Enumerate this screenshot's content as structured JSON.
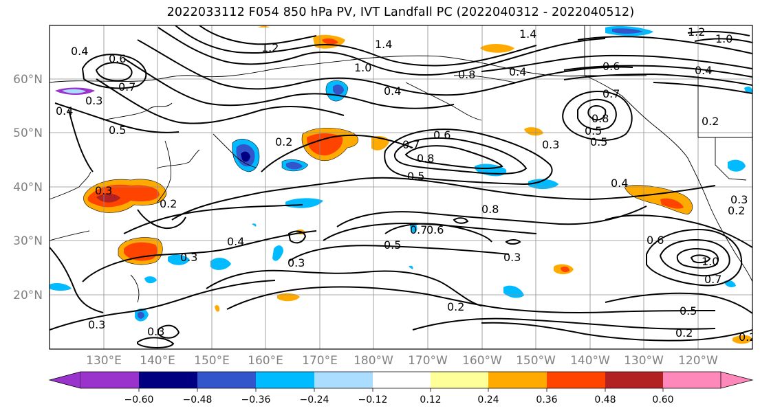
{
  "title": "2022033112 F054 850 hPa PV, IVT Landfall PC (2022040312 - 2022040512)",
  "lat_labels": [
    "60°N",
    "50°N",
    "40°N",
    "30°N",
    "20°N"
  ],
  "lon_labels": [
    "130°E",
    "140°E",
    "150°E",
    "160°E",
    "170°E",
    "180°W",
    "170°W",
    "160°W",
    "150°W",
    "140°W",
    "130°W",
    "120°W"
  ],
  "colorbar": {
    "colors": [
      "#9933cc",
      "#000080",
      "#3355cc",
      "#00bbff",
      "#aaddff",
      "#ffffff",
      "#ffff99",
      "#ffaa00",
      "#ff4400",
      "#b22222",
      "#ff88bb"
    ],
    "tick_labels": [
      "−0.60",
      "−0.48",
      "−0.36",
      "−0.24",
      "−0.12",
      "0.12",
      "0.24",
      "0.36",
      "0.48",
      "0.60"
    ]
  },
  "contour_labels": [
    "0.4",
    "0.6",
    "0.7",
    "0.4",
    "0.3",
    "0.5",
    "1.2",
    "1.4",
    "1.0",
    "1.4",
    "1.2",
    "1.0",
    "0.4",
    "0.8",
    "0.4",
    "0.6",
    "0.5",
    "0.8",
    "0.7",
    "0.4",
    "0.2",
    "0.2",
    "0.6",
    "0.8",
    "0.7",
    "0.5",
    "0.3",
    "0.5",
    "0.8",
    "0.3",
    "0.4",
    "0.2",
    "0.4",
    "0.2",
    "0.3",
    "0.3",
    "0.7",
    "0.6",
    "0.5",
    "0.3",
    "0.6",
    "1.0",
    "0.7",
    "0.5",
    "0.2",
    "0.2",
    "0.3",
    "0.3",
    "0.2",
    "0.3"
  ]
}
